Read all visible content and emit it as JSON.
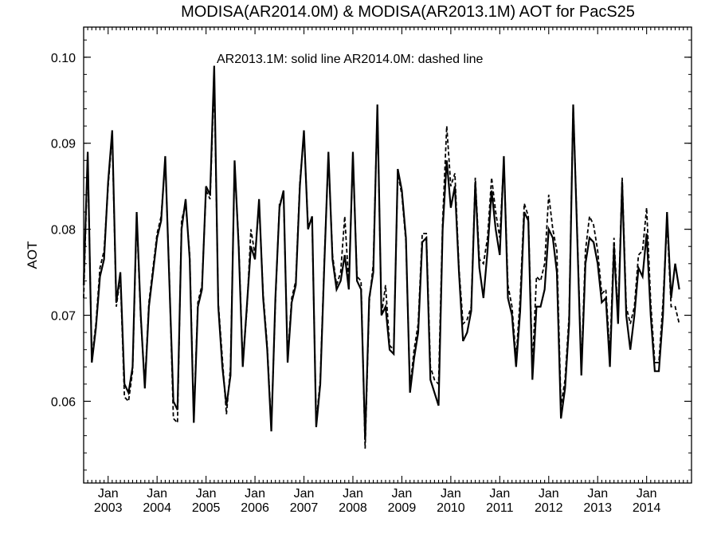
{
  "chart_data": {
    "type": "line",
    "title": "MODISA(AR2014.0M) & MODISA(AR2013.1M)  AOT for PacS25",
    "annotation": "AR2013.1M: solid line   AR2014.0M: dashed line",
    "ylabel": "AOT",
    "xlabel": "",
    "ylim": [
      0.0505,
      0.1035
    ],
    "xlim": [
      "2002-07",
      "2014-12"
    ],
    "y_ticks": [
      "0.06",
      "0.07",
      "0.08",
      "0.09",
      "0.10"
    ],
    "y_tick_values": [
      0.06,
      0.07,
      0.08,
      0.09,
      0.1
    ],
    "x_tick_top_label": "Jan",
    "x_ticks": [
      "2003",
      "2004",
      "2005",
      "2006",
      "2007",
      "2008",
      "2009",
      "2010",
      "2011",
      "2012",
      "2013",
      "2014"
    ],
    "grid": false,
    "colors": {
      "line": "#000000",
      "axes": "#000000",
      "background": "#ffffff"
    },
    "series": [
      {
        "style": "solid",
        "x_start": "2002-07",
        "values": [
          0.0735,
          0.089,
          0.0645,
          0.0685,
          0.0745,
          0.0765,
          0.0855,
          0.0915,
          0.0715,
          0.075,
          0.062,
          0.061,
          0.064,
          0.082,
          0.07,
          0.0615,
          0.071,
          0.075,
          0.079,
          0.081,
          0.0885,
          0.074,
          0.06,
          0.059,
          0.08,
          0.0835,
          0.0765,
          0.0575,
          0.071,
          0.073,
          0.085,
          0.084,
          0.099,
          0.071,
          0.064,
          0.0595,
          0.063,
          0.088,
          0.078,
          0.064,
          0.071,
          0.078,
          0.0765,
          0.0835,
          0.072,
          0.066,
          0.0565,
          0.072,
          0.0825,
          0.0845,
          0.0645,
          0.0715,
          0.0735,
          0.085,
          0.0915,
          0.08,
          0.0815,
          0.057,
          0.062,
          0.076,
          0.089,
          0.0765,
          0.073,
          0.074,
          0.077,
          0.073,
          0.089,
          0.074,
          0.073,
          0.0555,
          0.072,
          0.075,
          0.0945,
          0.07,
          0.071,
          0.066,
          0.0655,
          0.087,
          0.0845,
          0.079,
          0.061,
          0.065,
          0.068,
          0.0785,
          0.079,
          0.0625,
          0.061,
          0.0595,
          0.08,
          0.088,
          0.0825,
          0.085,
          0.075,
          0.067,
          0.068,
          0.0705,
          0.0855,
          0.0755,
          0.072,
          0.0775,
          0.0845,
          0.08,
          0.077,
          0.0885,
          0.072,
          0.07,
          0.064,
          0.0705,
          0.082,
          0.081,
          0.0625,
          0.071,
          0.071,
          0.073,
          0.08,
          0.079,
          0.075,
          0.058,
          0.0615,
          0.069,
          0.0945,
          0.079,
          0.063,
          0.076,
          0.079,
          0.0785,
          0.076,
          0.0715,
          0.072,
          0.064,
          0.078,
          0.069,
          0.0855,
          0.07,
          0.066,
          0.07,
          0.0755,
          0.0745,
          0.0795,
          0.07,
          0.0635,
          0.0635,
          0.07,
          0.082,
          0.072,
          0.076,
          0.073
        ]
      },
      {
        "style": "dashed",
        "x_start": "2002-07",
        "values": [
          0.072,
          0.0885,
          0.065,
          0.069,
          0.0755,
          0.0775,
          0.085,
          0.091,
          0.071,
          0.0745,
          0.0605,
          0.06,
          0.0635,
          0.0815,
          0.0695,
          0.062,
          0.0715,
          0.0755,
          0.0795,
          0.0815,
          0.088,
          0.0745,
          0.058,
          0.0575,
          0.081,
          0.083,
          0.077,
          0.058,
          0.0715,
          0.0735,
          0.0845,
          0.0835,
          0.0975,
          0.0715,
          0.065,
          0.0585,
          0.064,
          0.0875,
          0.0785,
          0.0645,
          0.0705,
          0.08,
          0.077,
          0.083,
          0.0725,
          0.0665,
          0.057,
          0.0715,
          0.083,
          0.084,
          0.065,
          0.072,
          0.074,
          0.0855,
          0.091,
          0.0805,
          0.081,
          0.0575,
          0.0625,
          0.0765,
          0.0885,
          0.077,
          0.0735,
          0.075,
          0.0815,
          0.0735,
          0.0885,
          0.0745,
          0.074,
          0.0545,
          0.0715,
          0.076,
          0.094,
          0.07,
          0.0735,
          0.0665,
          0.066,
          0.0865,
          0.084,
          0.0785,
          0.0615,
          0.066,
          0.069,
          0.0795,
          0.0795,
          0.064,
          0.0625,
          0.062,
          0.081,
          0.092,
          0.085,
          0.0865,
          0.0755,
          0.069,
          0.0695,
          0.071,
          0.086,
          0.0765,
          0.076,
          0.079,
          0.086,
          0.082,
          0.079,
          0.088,
          0.0735,
          0.071,
          0.065,
          0.072,
          0.083,
          0.0815,
          0.064,
          0.0745,
          0.074,
          0.076,
          0.084,
          0.08,
          0.0775,
          0.0595,
          0.0625,
          0.07,
          0.0945,
          0.0795,
          0.064,
          0.0775,
          0.0815,
          0.0805,
          0.0775,
          0.0725,
          0.073,
          0.0655,
          0.079,
          0.07,
          0.086,
          0.071,
          0.069,
          0.071,
          0.077,
          0.0775,
          0.0825,
          0.0715,
          0.0645,
          0.0645,
          0.0715,
          0.081,
          0.071,
          0.071,
          0.069
        ]
      }
    ]
  }
}
